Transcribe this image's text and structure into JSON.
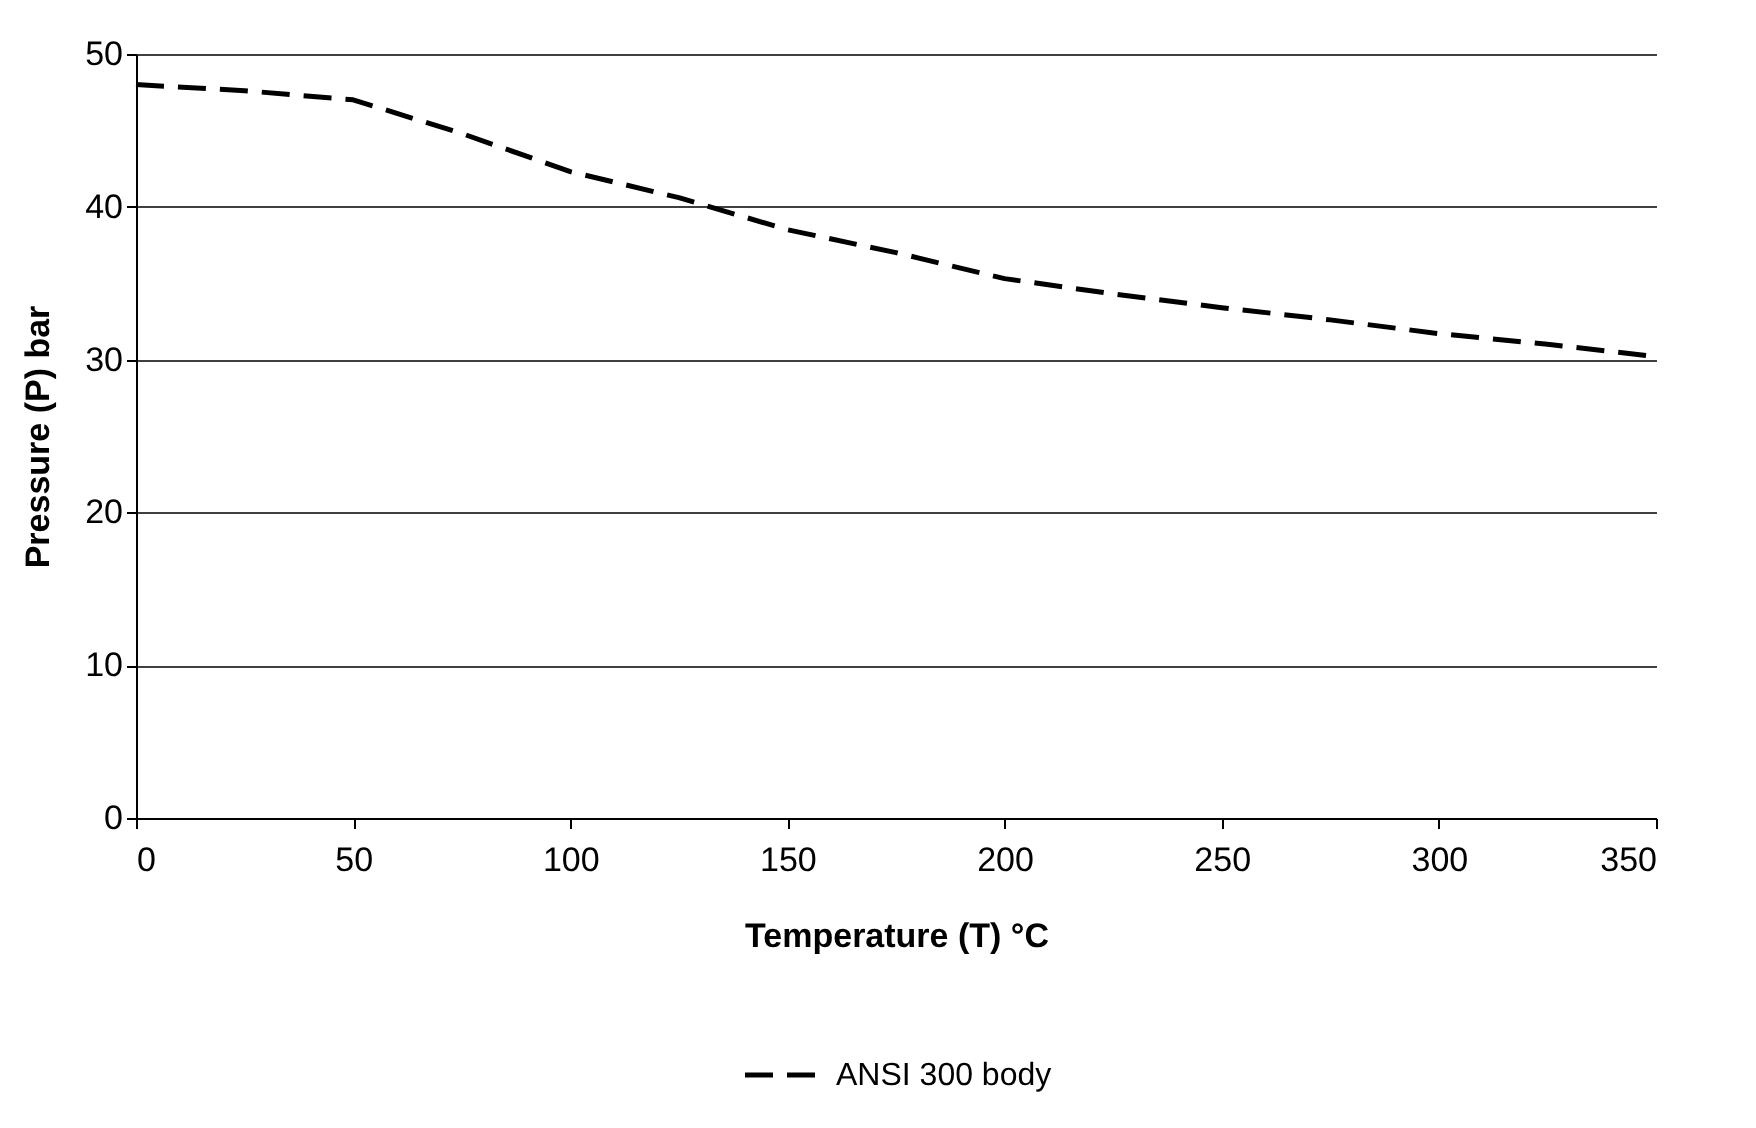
{
  "chart_data": {
    "type": "line",
    "xlabel": "Temperature (T) °C",
    "ylabel": "Pressure (P) bar",
    "x": [
      0,
      25,
      50,
      75,
      100,
      125,
      150,
      175,
      200,
      225,
      250,
      275,
      300,
      325,
      350
    ],
    "series": [
      {
        "name": "ANSI 300 body",
        "color": "#000000",
        "values": [
          48,
          47.6,
          47,
          44.8,
          42.3,
          40.6,
          38.5,
          37,
          35.3,
          34.3,
          33.4,
          32.6,
          31.7,
          31,
          30.2
        ]
      }
    ],
    "xlim": [
      0,
      350
    ],
    "xticks": [
      0,
      50,
      100,
      150,
      200,
      250,
      300,
      350
    ],
    "ylim": [
      0,
      50
    ],
    "yticks": [
      0,
      10,
      20,
      30,
      40,
      50
    ],
    "grid": "y",
    "legend": "bottom",
    "line_style": "dashed",
    "marker": "none"
  }
}
